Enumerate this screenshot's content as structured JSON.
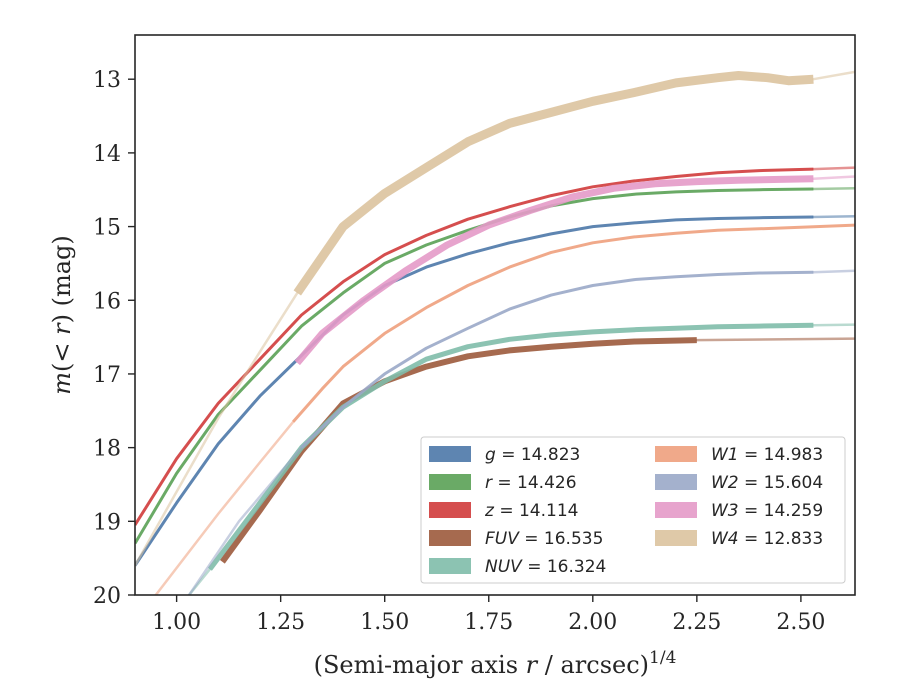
{
  "chart_data": {
    "type": "line",
    "xlabel": "(Semi-major axis r / arcsec)",
    "xlabel_main": "(Semi-major axis ",
    "xlabel_var": "r",
    "xlabel_rest": " / arcsec)",
    "xlabel_sup": "1/4",
    "ylabel": "m(< r) (mag)",
    "ylabel_var": "m",
    "ylabel_open": "(< ",
    "ylabel_r": "r",
    "ylabel_close": ") (mag)",
    "xlim": [
      0.9,
      2.63
    ],
    "ylim": [
      20.0,
      12.4
    ],
    "y_inverted": true,
    "x_ticks": [
      1.0,
      1.25,
      1.5,
      1.75,
      2.0,
      2.25,
      2.5
    ],
    "x_tick_labels": [
      "1.00",
      "1.25",
      "1.50",
      "1.75",
      "2.00",
      "2.25",
      "2.50"
    ],
    "y_ticks": [
      13,
      14,
      15,
      16,
      17,
      18,
      19,
      20
    ],
    "y_tick_labels": [
      "13",
      "14",
      "15",
      "16",
      "17",
      "18",
      "19",
      "20"
    ],
    "grid": false,
    "legend_position": "lower-right",
    "series": [
      {
        "name": "g",
        "value": "14.823",
        "color": "#4c78a8",
        "width": 3,
        "x": [
          0.9,
          1.0,
          1.1,
          1.2,
          1.3,
          1.4,
          1.5,
          1.6,
          1.7,
          1.8,
          1.9,
          2.0,
          2.1,
          2.2,
          2.3,
          2.4,
          2.53
        ],
        "y": [
          19.6,
          18.75,
          17.95,
          17.3,
          16.75,
          16.2,
          15.8,
          15.55,
          15.37,
          15.22,
          15.1,
          15.0,
          14.95,
          14.91,
          14.89,
          14.88,
          14.87
        ],
        "x_tail": [
          2.53,
          2.63
        ],
        "y_tail": [
          14.87,
          14.86
        ]
      },
      {
        "name": "r",
        "value": "14.426",
        "color": "#5aa155",
        "width": 3,
        "x": [
          0.9,
          1.0,
          1.1,
          1.2,
          1.3,
          1.4,
          1.5,
          1.6,
          1.7,
          1.8,
          1.9,
          2.0,
          2.1,
          2.2,
          2.3,
          2.4,
          2.53
        ],
        "y": [
          19.3,
          18.35,
          17.55,
          16.95,
          16.35,
          15.9,
          15.5,
          15.25,
          15.05,
          14.87,
          14.72,
          14.62,
          14.56,
          14.53,
          14.51,
          14.5,
          14.49
        ],
        "x_tail": [
          2.53,
          2.63
        ],
        "y_tail": [
          14.49,
          14.48
        ]
      },
      {
        "name": "z",
        "value": "14.114",
        "color": "#d03b3b",
        "width": 3,
        "x": [
          0.9,
          1.0,
          1.1,
          1.2,
          1.3,
          1.4,
          1.5,
          1.6,
          1.7,
          1.8,
          1.9,
          2.0,
          2.1,
          2.2,
          2.3,
          2.4,
          2.53
        ],
        "y": [
          19.05,
          18.15,
          17.4,
          16.8,
          16.2,
          15.75,
          15.38,
          15.12,
          14.9,
          14.73,
          14.58,
          14.46,
          14.38,
          14.32,
          14.27,
          14.24,
          14.22
        ],
        "x_tail": [
          2.53,
          2.63
        ],
        "y_tail": [
          14.22,
          14.2
        ]
      },
      {
        "name": "FUV",
        "value": "16.535",
        "color": "#9c5a3c",
        "width": 6,
        "x": [
          1.11,
          1.2,
          1.3,
          1.4,
          1.5,
          1.6,
          1.7,
          1.8,
          1.9,
          2.0,
          2.1,
          2.25
        ],
        "y": [
          19.55,
          18.85,
          18.05,
          17.4,
          17.1,
          16.9,
          16.76,
          16.68,
          16.63,
          16.59,
          16.56,
          16.54
        ],
        "x_tail": [
          2.25,
          2.63
        ],
        "y_tail": [
          16.54,
          16.52
        ]
      },
      {
        "name": "NUV",
        "value": "16.324",
        "color": "#7fbcaa",
        "width": 5,
        "x": [
          1.08,
          1.2,
          1.3,
          1.4,
          1.5,
          1.6,
          1.7,
          1.8,
          1.9,
          2.0,
          2.1,
          2.2,
          2.3,
          2.4,
          2.53
        ],
        "y": [
          19.65,
          18.75,
          18.0,
          17.45,
          17.1,
          16.8,
          16.63,
          16.53,
          16.47,
          16.43,
          16.4,
          16.38,
          16.36,
          16.35,
          16.34
        ],
        "x_tail": [
          1.03,
          1.08
        ],
        "y_tail": [
          20.0,
          19.65
        ],
        "x_tail2": [
          2.53,
          2.63
        ],
        "y_tail2": [
          16.34,
          16.33
        ]
      },
      {
        "name": "W1",
        "value": "14.983",
        "color": "#eea07d",
        "width": 3,
        "x": [
          1.28,
          1.35,
          1.4,
          1.5,
          1.6,
          1.7,
          1.8,
          1.9,
          2.0,
          2.1,
          2.2,
          2.3,
          2.4,
          2.5,
          2.63
        ],
        "y": [
          17.65,
          17.2,
          16.9,
          16.45,
          16.1,
          15.8,
          15.55,
          15.35,
          15.22,
          15.14,
          15.09,
          15.05,
          15.03,
          15.01,
          14.98
        ],
        "x_tail": [
          0.95,
          1.1,
          1.2,
          1.28
        ],
        "y_tail": [
          20.0,
          18.9,
          18.2,
          17.65
        ]
      },
      {
        "name": "W2",
        "value": "15.604",
        "color": "#9aa8c8",
        "width": 3,
        "x": [
          1.3,
          1.4,
          1.5,
          1.6,
          1.7,
          1.8,
          1.9,
          2.0,
          2.1,
          2.2,
          2.3,
          2.4,
          2.53
        ],
        "y": [
          18.0,
          17.45,
          17.0,
          16.65,
          16.38,
          16.12,
          15.93,
          15.8,
          15.72,
          15.68,
          15.65,
          15.63,
          15.62
        ],
        "x_tail": [
          1.03,
          1.15,
          1.3
        ],
        "y_tail": [
          20.0,
          19.0,
          18.0
        ],
        "x_tail2": [
          2.53,
          2.63
        ],
        "y_tail2": [
          15.62,
          15.6
        ]
      },
      {
        "name": "W3",
        "value": "14.259",
        "color": "#e49ac8",
        "width": 7,
        "x": [
          1.29,
          1.35,
          1.45,
          1.55,
          1.65,
          1.75,
          1.85,
          1.95,
          2.05,
          2.15,
          2.25,
          2.35,
          2.45,
          2.53
        ],
        "y": [
          16.85,
          16.45,
          16.0,
          15.6,
          15.25,
          14.98,
          14.78,
          14.6,
          14.48,
          14.42,
          14.39,
          14.37,
          14.36,
          14.35
        ],
        "x_tail": [
          2.53,
          2.63
        ],
        "y_tail": [
          14.35,
          14.32
        ]
      },
      {
        "name": "W4",
        "value": "12.833",
        "color": "#dbc39e",
        "width": 9,
        "x": [
          1.29,
          1.4,
          1.5,
          1.6,
          1.7,
          1.8,
          1.9,
          2.0,
          2.1,
          2.2,
          2.3,
          2.35,
          2.42,
          2.47,
          2.53
        ],
        "y": [
          15.9,
          15.0,
          14.55,
          14.2,
          13.85,
          13.6,
          13.45,
          13.3,
          13.18,
          13.05,
          12.98,
          12.95,
          12.98,
          13.02,
          13.0
        ],
        "x_tail": [
          0.9,
          1.0,
          1.1,
          1.2,
          1.29
        ],
        "y_tail": [
          19.6,
          18.6,
          17.6,
          16.7,
          15.9
        ],
        "x_tail2": [
          2.53,
          2.63
        ],
        "y_tail2": [
          13.0,
          12.9
        ]
      }
    ]
  }
}
